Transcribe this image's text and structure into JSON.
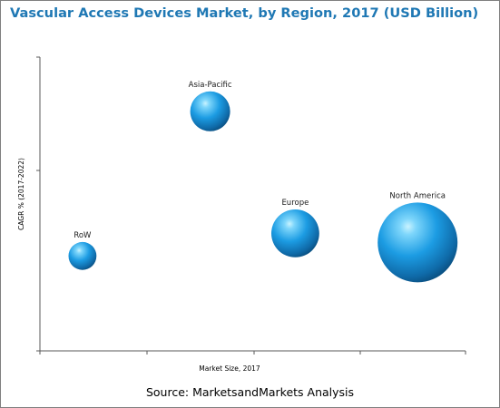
{
  "chart_data": {
    "type": "scatter",
    "variant": "bubble",
    "title": "Vascular Access Devices Market, by Region, 2017 (USD Billion)",
    "xlabel": "Market Size, 2017",
    "ylabel": "CAGR % (2017-2022)",
    "x_tick_labels": "none",
    "y_tick_labels": "none",
    "grid": false,
    "legend": "none",
    "series": [
      {
        "points": [
          {
            "label": "RoW",
            "x": 0.8,
            "y": 2.1,
            "size": 0.35,
            "label_position": "top"
          },
          {
            "label": "Asia-Pacific",
            "x": 3.2,
            "y": 5.3,
            "size": 0.5,
            "label_position": "top"
          },
          {
            "label": "Europe",
            "x": 4.8,
            "y": 2.6,
            "size": 0.6,
            "label_position": "top"
          },
          {
            "label": "North America",
            "x": 7.1,
            "y": 2.4,
            "size": 1.0,
            "label_position": "top"
          }
        ]
      }
    ],
    "colors": {
      "bubble_highlight": "#8fe0ff",
      "bubble_mid": "#1ea0e6",
      "bubble_dark": "#0b5a92",
      "title": "#1f78b4"
    }
  },
  "footer": {
    "source": "Source: MarketsandMarkets Analysis"
  }
}
